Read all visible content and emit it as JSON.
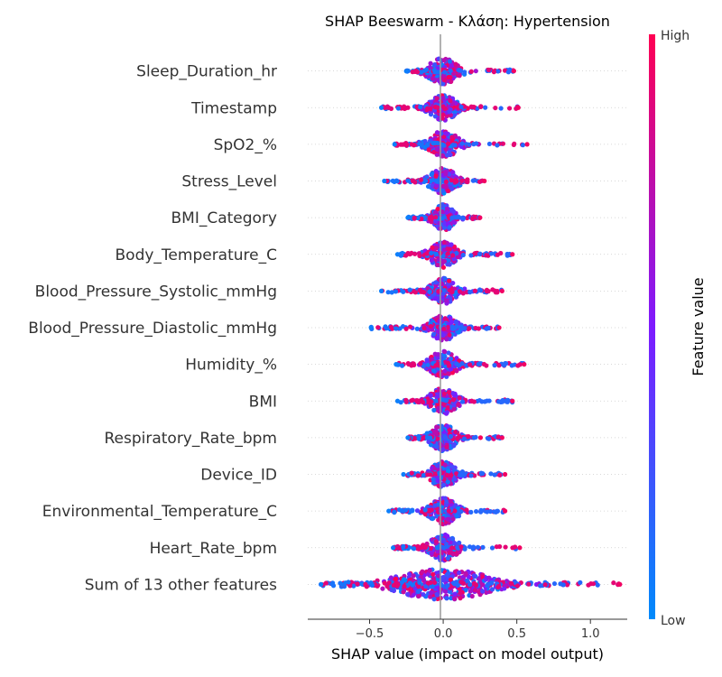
{
  "chart_data": {
    "type": "scatter",
    "title": "SHAP Beeswarm - Κλάση: Hypertension",
    "xlabel": "SHAP value (impact on model output)",
    "xlim": [
      -0.92,
      1.25
    ],
    "xticks": [
      -0.5,
      0.0,
      0.5,
      1.0
    ],
    "xtick_labels": [
      "−0.5",
      "0.0",
      "0.5",
      "1.0"
    ],
    "grid": false,
    "colorbar": {
      "label": "Feature value",
      "high_label": "High",
      "low_label": "Low",
      "low_color": "#008afb",
      "mid_color": "#7e1aff",
      "high_color": "#ff0052"
    },
    "features": [
      {
        "name": "Sleep_Duration_hr",
        "min": -0.25,
        "max": 0.48,
        "core": 0.08,
        "spread": 0.12
      },
      {
        "name": "Timestamp",
        "min": -0.42,
        "max": 0.51,
        "core": 0.07,
        "spread": 0.12
      },
      {
        "name": "SpO2_%",
        "min": -0.33,
        "max": 0.57,
        "core": 0.08,
        "spread": 0.12
      },
      {
        "name": "Stress_Level",
        "min": -0.4,
        "max": 0.28,
        "core": 0.07,
        "spread": 0.11
      },
      {
        "name": "BMI_Category",
        "min": -0.24,
        "max": 0.25,
        "core": 0.06,
        "spread": 0.08
      },
      {
        "name": "Body_Temperature_C",
        "min": -0.31,
        "max": 0.47,
        "core": 0.07,
        "spread": 0.12
      },
      {
        "name": "Blood_Pressure_Systolic_mmHg",
        "min": -0.42,
        "max": 0.4,
        "core": 0.07,
        "spread": 0.12
      },
      {
        "name": "Blood_Pressure_Diastolic_mmHg",
        "min": -0.49,
        "max": 0.38,
        "core": 0.07,
        "spread": 0.12
      },
      {
        "name": "Humidity_%",
        "min": -0.32,
        "max": 0.55,
        "core": 0.07,
        "spread": 0.12
      },
      {
        "name": "BMI",
        "min": -0.31,
        "max": 0.47,
        "core": 0.07,
        "spread": 0.12
      },
      {
        "name": "Respiratory_Rate_bpm",
        "min": -0.24,
        "max": 0.4,
        "core": 0.07,
        "spread": 0.11
      },
      {
        "name": "Device_ID",
        "min": -0.27,
        "max": 0.42,
        "core": 0.07,
        "spread": 0.11
      },
      {
        "name": "Environmental_Temperature_C",
        "min": -0.37,
        "max": 0.42,
        "core": 0.07,
        "spread": 0.11
      },
      {
        "name": "Heart_Rate_bpm",
        "min": -0.34,
        "max": 0.52,
        "core": 0.07,
        "spread": 0.11
      },
      {
        "name": "Sum of 13 other features",
        "min": -0.83,
        "max": 1.2,
        "core": 0.25,
        "spread": 0.32
      }
    ]
  }
}
